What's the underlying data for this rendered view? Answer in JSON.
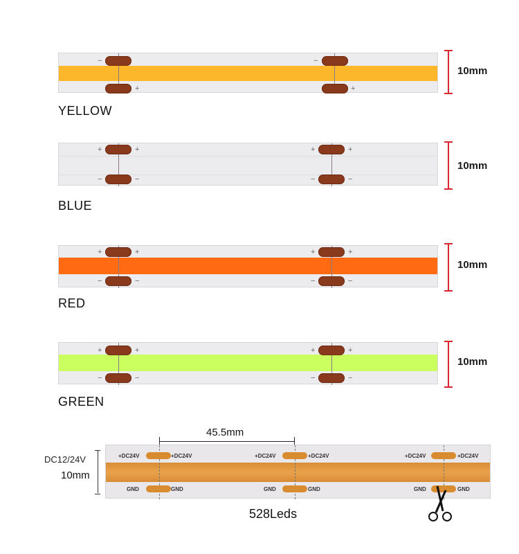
{
  "strips": [
    {
      "label": "YELLOW",
      "width": "10mm",
      "band_color": "#fcb72a",
      "top_signs": [
        "−",
        "−"
      ],
      "bottom_signs": [
        "+",
        "+"
      ]
    },
    {
      "label": "BLUE",
      "width": "10mm",
      "band_color": "#ecebee",
      "top_signs": [
        "+",
        "+"
      ],
      "bottom_signs": [
        "−",
        "−"
      ]
    },
    {
      "label": "RED",
      "width": "10mm",
      "band_color": "#ff6a12",
      "top_signs": [
        "+",
        "+"
      ],
      "bottom_signs": [
        "−",
        "−"
      ]
    },
    {
      "label": "GREEN",
      "width": "10mm",
      "band_color": "#cbff60",
      "top_signs": [
        "+",
        "+"
      ],
      "bottom_signs": [
        "−",
        "−"
      ]
    }
  ],
  "bottom_diagram": {
    "voltage": "DC12/24V",
    "width": "10mm",
    "segment_length": "45.5mm",
    "led_count": "528Leds",
    "pad_top_label": "+DC24V",
    "pad_bottom_label": "GND",
    "band_color": "#e49c45"
  }
}
